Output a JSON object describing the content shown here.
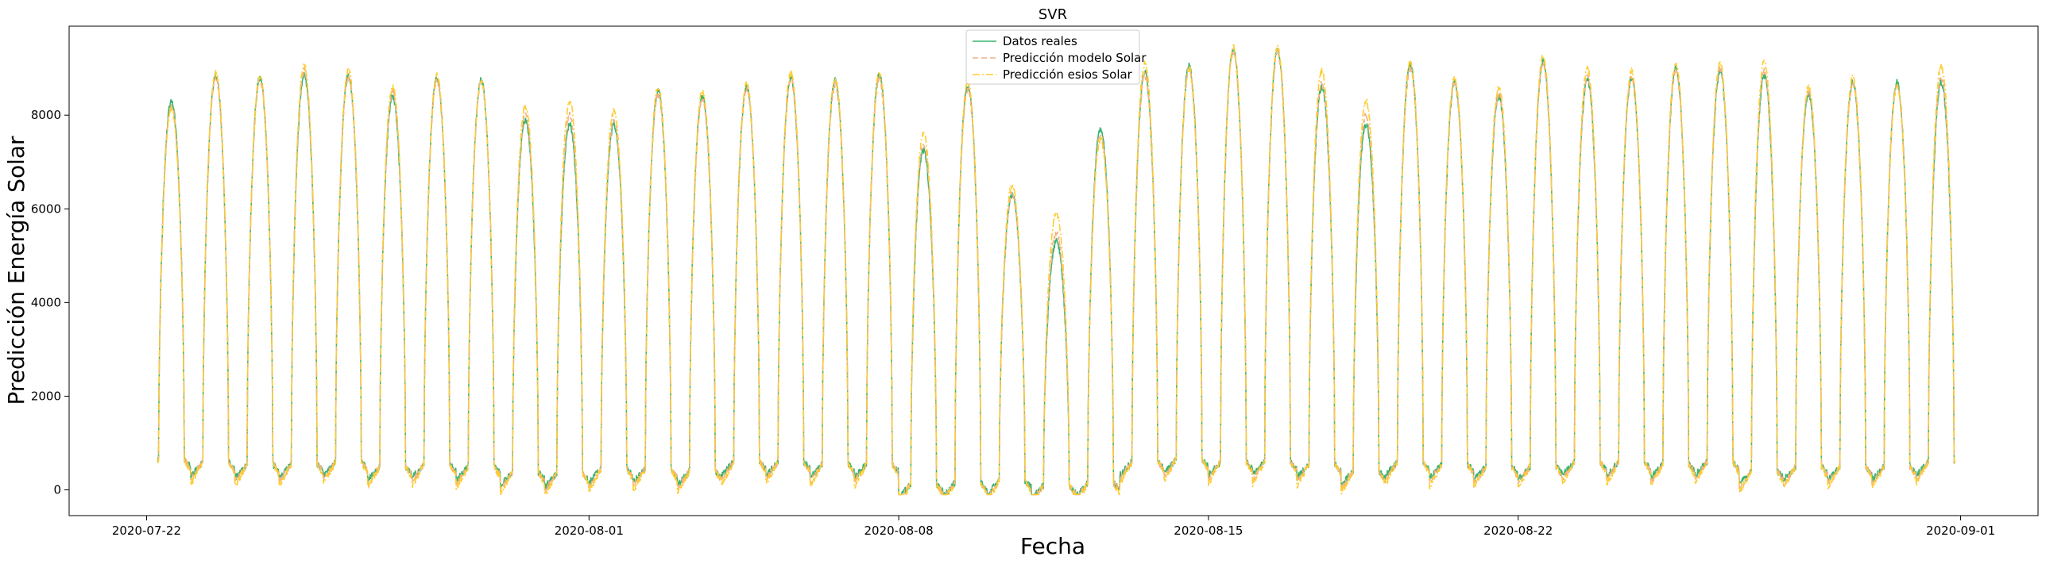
{
  "chart_data": {
    "type": "line",
    "title": "SVR",
    "xlabel": "Fecha",
    "ylabel": "Predicción Energía Solar",
    "x_ticks": [
      "2020-07-22",
      "2020-08-01",
      "2020-08-08",
      "2020-08-15",
      "2020-08-22",
      "2020-09-01"
    ],
    "y_ticks": [
      0,
      2000,
      4000,
      6000,
      8000
    ],
    "ylim": [
      -550,
      9900
    ],
    "xlim": [
      "2020-07-20T06:00",
      "2020-09-02T18:00"
    ],
    "grid": false,
    "legend_position": "top-center",
    "daily_profile": {
      "dates": [
        "2020-07-22",
        "2020-07-23",
        "2020-07-24",
        "2020-07-25",
        "2020-07-26",
        "2020-07-27",
        "2020-07-28",
        "2020-07-29",
        "2020-07-30",
        "2020-07-31",
        "2020-08-01",
        "2020-08-02",
        "2020-08-03",
        "2020-08-04",
        "2020-08-05",
        "2020-08-06",
        "2020-08-07",
        "2020-08-08",
        "2020-08-09",
        "2020-08-10",
        "2020-08-11",
        "2020-08-12",
        "2020-08-13",
        "2020-08-14",
        "2020-08-15",
        "2020-08-16",
        "2020-08-17",
        "2020-08-18",
        "2020-08-19",
        "2020-08-20",
        "2020-08-21",
        "2020-08-22",
        "2020-08-23",
        "2020-08-24",
        "2020-08-25",
        "2020-08-26",
        "2020-08-27",
        "2020-08-28",
        "2020-08-29",
        "2020-08-30",
        "2020-08-31"
      ],
      "night_values": [
        650,
        600,
        550,
        550,
        600,
        500,
        550,
        500,
        380,
        350,
        450,
        450,
        400,
        600,
        600,
        550,
        550,
        120,
        150,
        200,
        100,
        150,
        600,
        650,
        600,
        600,
        550,
        400,
        600,
        550,
        500,
        500,
        600,
        600,
        550,
        600,
        400,
        500,
        500,
        500,
        600
      ],
      "series": [
        {
          "name": "Datos reales",
          "color": "#3cb371",
          "style": "solid",
          "peaks": [
            8300,
            8850,
            8800,
            8850,
            8850,
            8400,
            8800,
            8750,
            7900,
            7800,
            7800,
            8500,
            8400,
            8600,
            8800,
            8750,
            8850,
            7250,
            8650,
            6300,
            5300,
            7700,
            8900,
            9050,
            9400,
            9400,
            8600,
            7800,
            9100,
            8700,
            8400,
            9150,
            8750,
            8800,
            9000,
            8950,
            8850,
            8450,
            8700,
            8700,
            8700
          ]
        },
        {
          "name": "Predicción modelo Solar",
          "color": "#f4b183",
          "style": "dashed",
          "peaks": [
            8200,
            8800,
            8750,
            8950,
            8800,
            8500,
            8750,
            8700,
            8000,
            8000,
            7900,
            8450,
            8350,
            8550,
            8750,
            8650,
            8750,
            7400,
            8550,
            6300,
            5500,
            7600,
            8850,
            8950,
            9350,
            9350,
            8700,
            8000,
            9000,
            8700,
            8450,
            9100,
            8800,
            8800,
            8950,
            9000,
            8950,
            8500,
            8650,
            8650,
            8800
          ]
        },
        {
          "name": "Predicción esios Solar",
          "color": "#ffcc33",
          "style": "dashdot",
          "peaks": [
            8150,
            8900,
            8850,
            9050,
            8950,
            8600,
            8850,
            8750,
            8200,
            8300,
            8100,
            8600,
            8500,
            8650,
            8900,
            8800,
            8900,
            7600,
            8700,
            6500,
            5900,
            7500,
            9100,
            9000,
            9450,
            9450,
            8950,
            8300,
            9150,
            8800,
            8600,
            9250,
            9000,
            8950,
            9100,
            9100,
            9150,
            8600,
            8800,
            8600,
            9050
          ]
        }
      ]
    }
  }
}
